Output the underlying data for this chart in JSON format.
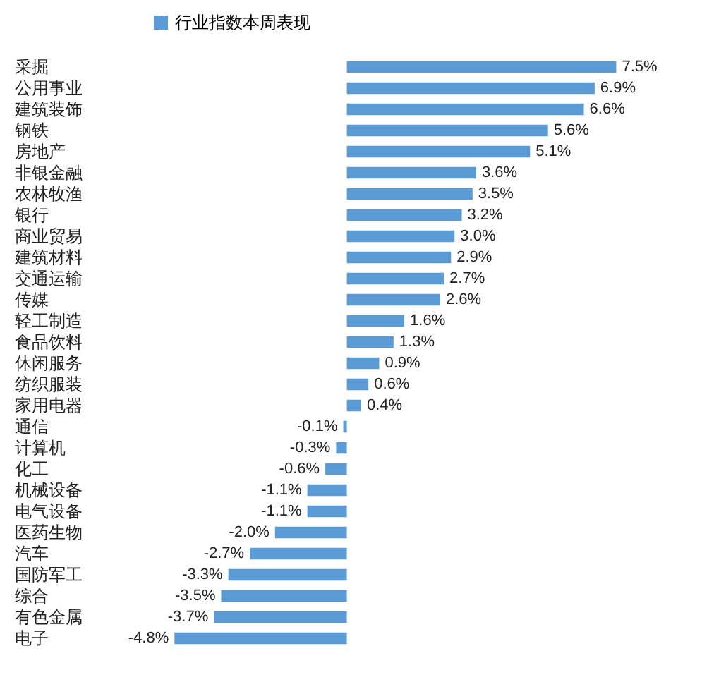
{
  "chart_data": {
    "type": "bar",
    "orientation": "horizontal",
    "legend": "top",
    "categories": [
      "采掘",
      "公用事业",
      "建筑装饰",
      "钢铁",
      "房地产",
      "非银金融",
      "农林牧渔",
      "银行",
      "商业贸易",
      "建筑材料",
      "交通运输",
      "传媒",
      "轻工制造",
      "食品饮料",
      "休闲服务",
      "纺织服装",
      "家用电器",
      "通信",
      "计算机",
      "化工",
      "机械设备",
      "电气设备",
      "医药生物",
      "汽车",
      "国防军工",
      "综合",
      "有色金属",
      "电子"
    ],
    "series": [
      {
        "name": "行业指数本周表现",
        "color": "#5b9bd5",
        "values": [
          7.5,
          6.9,
          6.6,
          5.6,
          5.1,
          3.6,
          3.5,
          3.2,
          3.0,
          2.9,
          2.7,
          2.6,
          1.6,
          1.3,
          0.9,
          0.6,
          0.4,
          -0.1,
          -0.3,
          -0.6,
          -1.1,
          -1.1,
          -2.0,
          -2.7,
          -3.3,
          -3.5,
          -3.7,
          -4.8
        ],
        "value_labels": [
          "7.5%",
          "6.9%",
          "6.6%",
          "5.6%",
          "5.1%",
          "3.6%",
          "3.5%",
          "3.2%",
          "3.0%",
          "2.9%",
          "2.7%",
          "2.6%",
          "1.6%",
          "1.3%",
          "0.9%",
          "0.6%",
          "0.4%",
          "-0.1%",
          "-0.3%",
          "-0.6%",
          "-1.1%",
          "-1.1%",
          "-2.0%",
          "-2.7%",
          "-3.3%",
          "-3.5%",
          "-3.7%",
          "-4.8%"
        ]
      }
    ]
  }
}
